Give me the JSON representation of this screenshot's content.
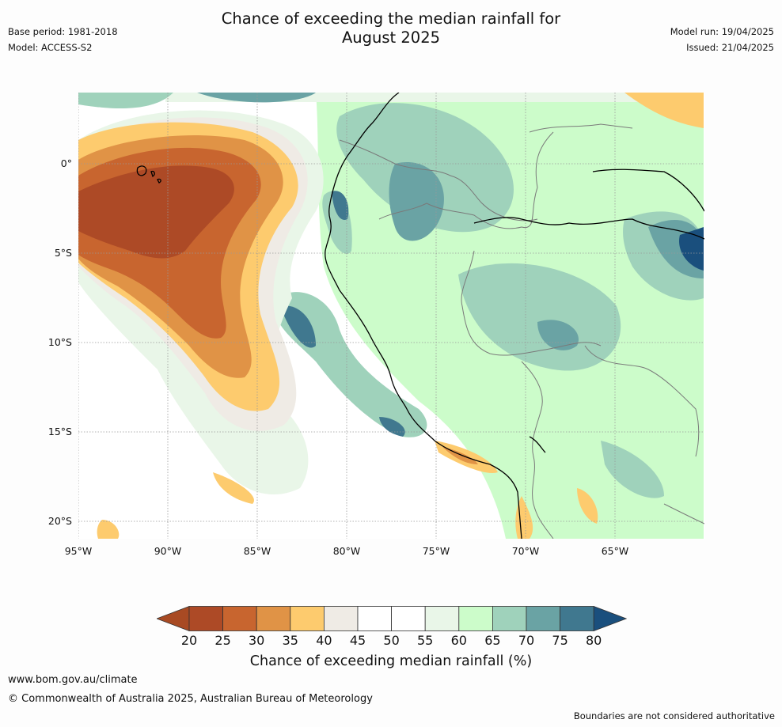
{
  "header": {
    "title_line1": "Chance of exceeding the median rainfall for",
    "title_line2": "August 2025",
    "base_period": "Base period: 1981-2018",
    "model": "Model: ACCESS-S2",
    "model_run": "Model run: 19/04/2025",
    "issued": "Issued: 21/04/2025"
  },
  "map": {
    "lat_labels": [
      "0°",
      "5°S",
      "10°S",
      "15°S",
      "20°S"
    ],
    "lon_labels": [
      "95°W",
      "90°W",
      "85°W",
      "80°W",
      "75°W",
      "70°W",
      "65°W"
    ],
    "ocean_color": "#ffffff"
  },
  "colorbar": {
    "ticks": [
      "20",
      "25",
      "30",
      "35",
      "40",
      "45",
      "50",
      "55",
      "60",
      "65",
      "70",
      "75",
      "80"
    ],
    "colors": [
      "#a84a23",
      "#ad4a26",
      "#c8652f",
      "#e09346",
      "#fdcb6e",
      "#efebe5",
      "#ffffff",
      "#ffffff",
      "#e9f6e8",
      "#ccfcca",
      "#9fd2bb",
      "#6aa3a4",
      "#40788f",
      "#1a4f7d"
    ],
    "label": "Chance of exceeding median rainfall (%)"
  },
  "footer": {
    "url": "www.bom.gov.au/climate",
    "copyright": "© Commonwealth of Australia 2025, Australian Bureau of Meteorology",
    "disclaimer": "Boundaries are not considered authoritative"
  }
}
